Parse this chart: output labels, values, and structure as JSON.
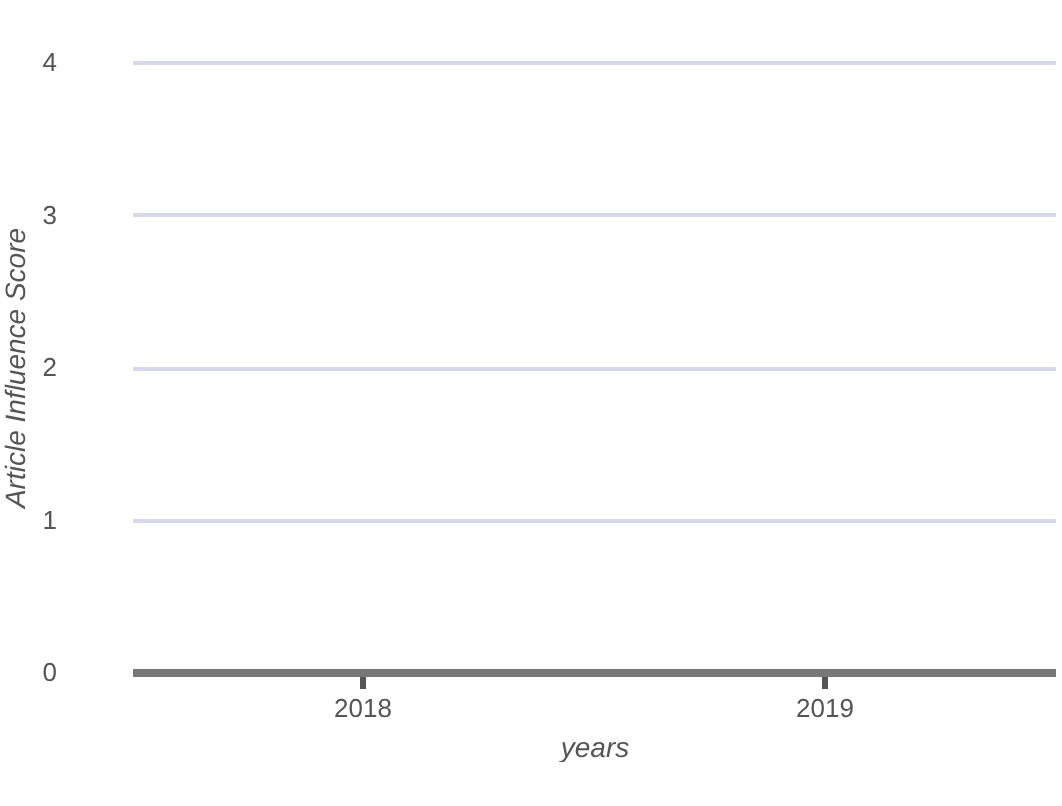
{
  "chart_data": {
    "type": "bar",
    "xlabel": "years",
    "ylabel": "Article Influence Score",
    "categories": [
      "2018",
      "2019"
    ],
    "values": [
      null,
      null
    ],
    "ylim": [
      0,
      4
    ],
    "yticks": [
      0,
      1,
      2,
      3,
      4
    ],
    "grid": "y"
  }
}
